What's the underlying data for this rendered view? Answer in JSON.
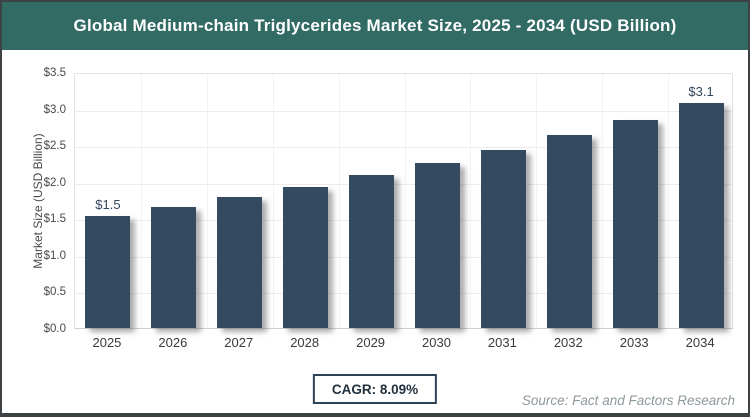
{
  "header": {
    "title": "Global Medium-chain Triglycerides Market Size, 2025 - 2034 (USD Billion)",
    "background_color": "#316b64",
    "text_color": "#ffffff"
  },
  "chart_data": {
    "type": "bar",
    "title": "Global Medium-chain Triglycerides Market Size, 2025 - 2034 (USD Billion)",
    "categories": [
      "2025",
      "2026",
      "2027",
      "2028",
      "2029",
      "2030",
      "2031",
      "2032",
      "2033",
      "2034"
    ],
    "values": [
      1.53,
      1.65,
      1.79,
      1.93,
      2.09,
      2.26,
      2.44,
      2.64,
      2.85,
      3.08
    ],
    "bar_labels": [
      "$1.5",
      "",
      "",
      "",
      "",
      "",
      "",
      "",
      "",
      "$3.1"
    ],
    "xlabel": "",
    "ylabel": "Market Size (USD Billion)",
    "ylim": [
      0,
      3.5
    ],
    "yticks": [
      "$0.0",
      "$0.5",
      "$1.0",
      "$1.5",
      "$2.0",
      "$2.5",
      "$3.0",
      "$3.5"
    ],
    "grid": "horizontal and faint vertical category separators",
    "legend": "none",
    "bar_color": "#344a61",
    "label_color": "#33475c"
  },
  "footer": {
    "cagr_label": "CAGR: 8.09%",
    "source": "Source: Fact and Factors Research"
  }
}
